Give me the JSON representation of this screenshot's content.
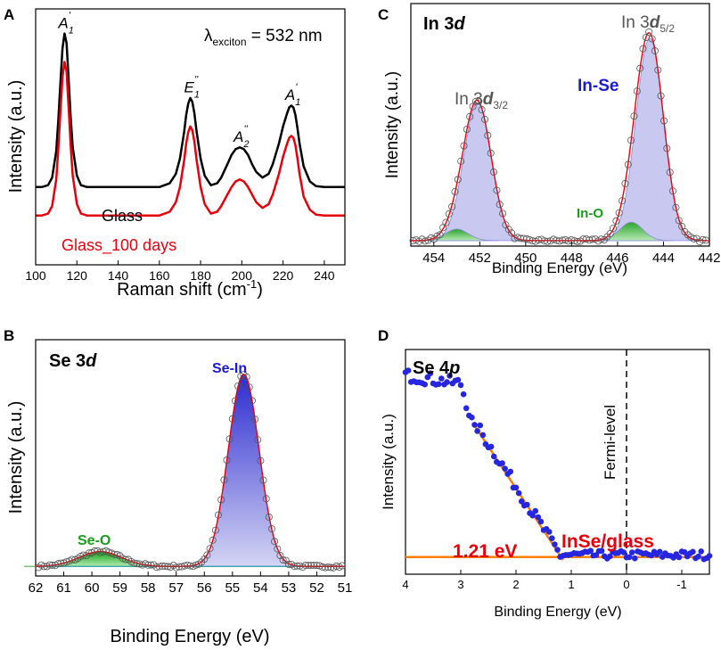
{
  "chart_data": [
    {
      "panel": "A",
      "type": "line",
      "title": "",
      "xlabel": "Raman shift (cm",
      "xlabel_sup": "-1",
      "xlabel_end": ")",
      "ylabel": "Intensity (a.u.)",
      "xlim": [
        100,
        250
      ],
      "ylim": [
        0,
        1.35
      ],
      "xticks": [
        100,
        120,
        140,
        160,
        180,
        200,
        220,
        240
      ],
      "x": [
        100,
        103,
        106,
        108,
        110,
        111,
        112,
        113,
        114,
        115,
        116,
        117,
        118,
        120,
        122,
        125,
        130,
        140,
        150,
        160,
        165,
        168,
        170,
        172,
        173,
        174,
        175,
        176,
        177,
        178,
        180,
        182,
        185,
        188,
        190,
        193,
        195,
        197,
        199,
        201,
        203,
        205,
        207,
        210,
        213,
        215,
        218,
        220,
        222,
        223,
        224,
        225,
        226,
        227,
        228,
        230,
        233,
        236,
        240,
        245,
        250
      ],
      "series": [
        {
          "name": "Glass",
          "color": "#000000",
          "values": [
            0.41,
            0.41,
            0.42,
            0.46,
            0.6,
            0.76,
            0.96,
            1.14,
            1.22,
            1.17,
            0.98,
            0.78,
            0.62,
            0.47,
            0.42,
            0.41,
            0.41,
            0.41,
            0.41,
            0.41,
            0.43,
            0.48,
            0.56,
            0.7,
            0.79,
            0.85,
            0.88,
            0.86,
            0.8,
            0.71,
            0.56,
            0.47,
            0.42,
            0.43,
            0.46,
            0.53,
            0.58,
            0.61,
            0.62,
            0.61,
            0.58,
            0.53,
            0.49,
            0.46,
            0.48,
            0.53,
            0.64,
            0.73,
            0.8,
            0.83,
            0.84,
            0.83,
            0.79,
            0.72,
            0.64,
            0.52,
            0.44,
            0.415,
            0.41,
            0.41,
            0.41
          ]
        },
        {
          "name": "Glass_100 days",
          "color": "#e8000b",
          "values": [
            0.26,
            0.26,
            0.27,
            0.31,
            0.45,
            0.61,
            0.81,
            0.99,
            1.07,
            1.02,
            0.83,
            0.63,
            0.47,
            0.32,
            0.27,
            0.26,
            0.26,
            0.26,
            0.26,
            0.26,
            0.28,
            0.33,
            0.41,
            0.55,
            0.64,
            0.7,
            0.73,
            0.71,
            0.65,
            0.56,
            0.41,
            0.32,
            0.27,
            0.28,
            0.31,
            0.37,
            0.41,
            0.44,
            0.45,
            0.44,
            0.41,
            0.37,
            0.33,
            0.3,
            0.32,
            0.37,
            0.48,
            0.57,
            0.64,
            0.67,
            0.68,
            0.67,
            0.63,
            0.56,
            0.48,
            0.36,
            0.29,
            0.265,
            0.26,
            0.26,
            0.26
          ]
        }
      ],
      "annotations": [
        {
          "main": "A",
          "sub": "1",
          "sup": "'",
          "x": 114,
          "y": 1.25
        },
        {
          "main": "E",
          "sub": "1",
          "sup": "''",
          "x": 175,
          "y": 0.91
        },
        {
          "main": "A",
          "sub": "2",
          "sup": "''",
          "x": 199,
          "y": 0.65
        },
        {
          "main": "A",
          "sub": "1",
          "sup": "'",
          "x": 224,
          "y": 0.87
        }
      ],
      "exciton_symbol": "λ",
      "exciton_sub": "exciton",
      "exciton_value": " = 532 nm",
      "legend": [
        "Glass",
        "Glass_100 days"
      ]
    },
    {
      "panel": "B",
      "type": "line",
      "label": "Se 3",
      "label_italic": "d",
      "xlabel": "Binding Energy (eV)",
      "ylabel": "Intensity (a.u.)",
      "xlim": [
        62,
        51
      ],
      "ylim": [
        0,
        1.05
      ],
      "xticks": [
        62,
        61,
        60,
        59,
        58,
        57,
        56,
        55,
        54,
        53,
        52,
        51
      ],
      "peaks": [
        {
          "name": "Se-In",
          "center": 54.6,
          "height": 0.905,
          "sigma": 0.55,
          "color": "#1a1adc"
        },
        {
          "name": "Se-O",
          "center": 59.7,
          "height": 0.07,
          "sigma": 0.75,
          "color": "#1a9e1a"
        }
      ],
      "baseline": 0.02
    },
    {
      "panel": "C",
      "type": "line",
      "label": "In 3",
      "label_italic": "d",
      "xlabel": "Binding Energy (eV)",
      "ylabel": "Intensity (a.u.)",
      "xlim": [
        455,
        442
      ],
      "ylim": [
        0,
        1.05
      ],
      "xticks": [
        454,
        452,
        450,
        448,
        446,
        444,
        442
      ],
      "peaks": [
        {
          "name": "In 3d3/2",
          "center": 452.1,
          "height": 0.6,
          "sigma": 0.6,
          "color": "#8c8cd8"
        },
        {
          "name": "In 3d5/2",
          "center": 444.6,
          "height": 0.88,
          "sigma": 0.6,
          "color": "#8c8cd8"
        },
        {
          "name": "In-O 3/2",
          "center": 453.0,
          "height": 0.05,
          "sigma": 0.5,
          "color": "#1a9e1a"
        },
        {
          "name": "In-O 5/2",
          "center": 445.4,
          "height": 0.08,
          "sigma": 0.5,
          "color": "#1a9e1a"
        }
      ],
      "baseline": 0.02,
      "peak_labels": [
        {
          "text": "In 3",
          "italic": "d",
          "sub": "3/2"
        },
        {
          "text": "In 3",
          "italic": "d",
          "sub": "5/2"
        }
      ],
      "component_labels": [
        "In-Se",
        "In-O"
      ]
    },
    {
      "panel": "D",
      "type": "scatter",
      "label": "Se 4",
      "label_italic": "p",
      "xlabel": "Binding Energy (eV)",
      "ylabel": "Intensity (a.u.)",
      "xlim": [
        4,
        -1.5
      ],
      "ylim": [
        0,
        1
      ],
      "xticks": [
        4,
        3,
        2,
        1,
        0,
        -1
      ],
      "fit_line": {
        "x": [
          2.75,
          1.15
        ],
        "y": [
          0.62,
          0.0
        ],
        "color": "#ff8000"
      },
      "baseline_y": 0.03,
      "fermi_level_x": 0,
      "fermi_label": "Fermi-level",
      "gap_label": "1.21 eV",
      "sample_label": "InSe/glass"
    }
  ]
}
